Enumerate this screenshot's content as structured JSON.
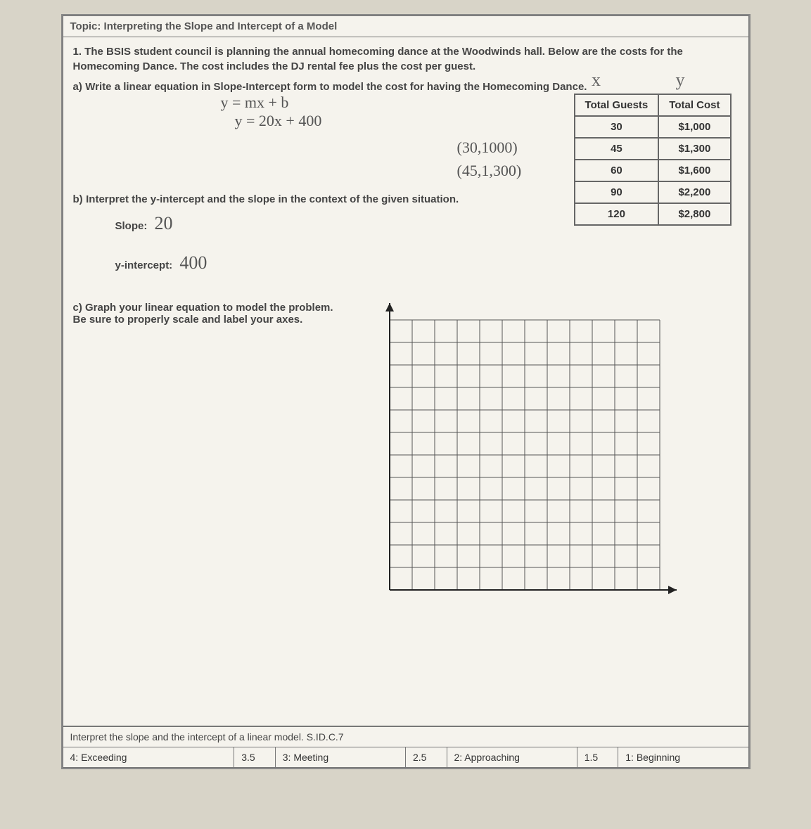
{
  "topic": "Topic: Interpreting the Slope and Intercept of a Model",
  "problem_intro": "1. The BSIS student council is planning the annual homecoming dance at the Woodwinds hall. Below are the costs for the Homecoming Dance. The cost includes the DJ rental fee plus the cost per guest.",
  "xy_label": "x y",
  "part_a": {
    "label": "a)",
    "text": "Write a linear equation in Slope-Intercept form to model the cost for having the Homecoming Dance."
  },
  "handwritten": {
    "eq1": "y = mx + b",
    "eq2": "y = 20x + 400",
    "coord1": "(30,1000)",
    "coord2": "(45,1,300)",
    "slope_val": "20",
    "yint_val": "400"
  },
  "table": {
    "headers": [
      "Total Guests",
      "Total Cost"
    ],
    "rows": [
      [
        "30",
        "$1,000"
      ],
      [
        "45",
        "$1,300"
      ],
      [
        "60",
        "$1,600"
      ],
      [
        "90",
        "$2,200"
      ],
      [
        "120",
        "$2,800"
      ]
    ],
    "border_color": "#666",
    "text_color": "#333",
    "fontsize": 15
  },
  "part_b": {
    "label": "b)",
    "text": "Interpret the y-intercept and the slope in the context of the given situation.",
    "slope_label": "Slope:",
    "yint_label": "y-intercept:"
  },
  "part_c": {
    "label": "c)",
    "text": "Graph your linear equation to model the problem. Be sure to properly scale and label your axes."
  },
  "grid": {
    "rows": 12,
    "cols": 12,
    "cell_size": 32,
    "line_color": "#555",
    "arrow_color": "#222",
    "background": "#f5f3ed"
  },
  "standard": "Interpret the slope and the intercept of a linear model. S.ID.C.7",
  "rubric": [
    {
      "score": "4:",
      "label": "Exceeding"
    },
    {
      "score": "3.5",
      "label": "3: Meeting"
    },
    {
      "score": "2.5",
      "label": "2: Approaching"
    },
    {
      "score": "1.5",
      "label": "1: Beginning"
    }
  ],
  "colors": {
    "page_bg": "#f5f3ed",
    "body_bg": "#d8d4c8",
    "border": "#777",
    "text": "#444",
    "handwritten": "#555"
  }
}
